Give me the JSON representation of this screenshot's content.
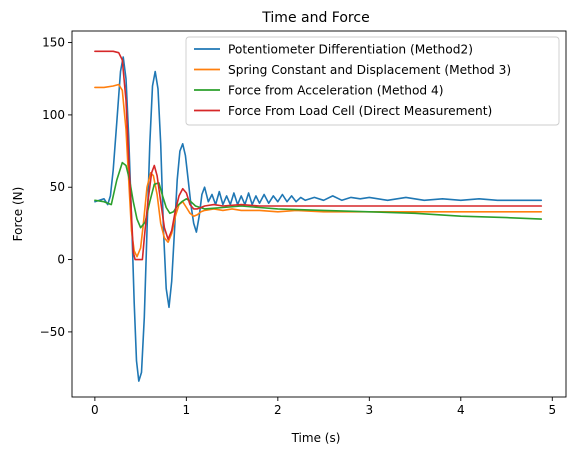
{
  "chart_data": {
    "type": "line",
    "title": "Time and Force",
    "xlabel": "Time (s)",
    "ylabel": "Force (N)",
    "xlim": [
      -0.25,
      5.15
    ],
    "ylim": [
      -95,
      158
    ],
    "xticks": [
      0,
      1,
      2,
      3,
      4,
      5
    ],
    "yticks": [
      -50,
      0,
      50,
      100,
      150
    ],
    "grid": false,
    "legend_position": "top-right",
    "series": [
      {
        "name": "Potentiometer Differentiation (Method2)",
        "color": "#1f77b4",
        "x": [
          0,
          0.1,
          0.14,
          0.17,
          0.2,
          0.24,
          0.28,
          0.31,
          0.34,
          0.37,
          0.4,
          0.43,
          0.455,
          0.48,
          0.51,
          0.54,
          0.57,
          0.6,
          0.63,
          0.66,
          0.69,
          0.72,
          0.75,
          0.78,
          0.81,
          0.84,
          0.87,
          0.9,
          0.93,
          0.96,
          0.99,
          1.02,
          1.05,
          1.08,
          1.11,
          1.14,
          1.17,
          1.2,
          1.24,
          1.28,
          1.32,
          1.36,
          1.4,
          1.44,
          1.48,
          1.52,
          1.56,
          1.6,
          1.64,
          1.68,
          1.72,
          1.76,
          1.8,
          1.85,
          1.9,
          1.95,
          2.0,
          2.05,
          2.1,
          2.15,
          2.2,
          2.25,
          2.3,
          2.4,
          2.5,
          2.6,
          2.7,
          2.8,
          2.9,
          3.0,
          3.2,
          3.4,
          3.6,
          3.8,
          4.0,
          4.2,
          4.4,
          4.6,
          4.88
        ],
        "y": [
          40,
          42,
          38,
          44,
          62,
          95,
          130,
          140,
          125,
          85,
          30,
          -30,
          -70,
          -84,
          -78,
          -40,
          20,
          80,
          120,
          130,
          118,
          80,
          20,
          -20,
          -33,
          -15,
          20,
          55,
          75,
          80,
          72,
          55,
          38,
          25,
          19,
          30,
          45,
          50,
          40,
          45,
          38,
          47,
          38,
          44,
          38,
          46,
          38,
          44,
          38,
          46,
          38,
          44,
          39,
          45,
          39,
          44,
          40,
          45,
          40,
          44,
          40,
          43,
          41,
          43,
          41,
          44,
          41,
          43,
          42,
          43,
          41,
          43,
          41,
          42,
          41,
          42,
          41,
          41,
          41
        ]
      },
      {
        "name": "Spring Constant and Displacement (Method 3)",
        "color": "#ff7f0e",
        "x": [
          0,
          0.1,
          0.2,
          0.26,
          0.3,
          0.34,
          0.37,
          0.4,
          0.43,
          0.46,
          0.5,
          0.53,
          0.57,
          0.61,
          0.64,
          0.68,
          0.72,
          0.76,
          0.8,
          0.84,
          0.88,
          0.92,
          0.96,
          1.0,
          1.04,
          1.08,
          1.12,
          1.16,
          1.2,
          1.3,
          1.4,
          1.5,
          1.6,
          1.8,
          2.0,
          2.2,
          2.5,
          3.0,
          3.5,
          4.0,
          4.5,
          4.88
        ],
        "y": [
          119,
          119,
          120,
          121,
          117,
          90,
          55,
          20,
          6,
          2,
          8,
          25,
          50,
          60,
          58,
          45,
          25,
          15,
          12,
          18,
          30,
          38,
          40,
          36,
          32,
          30,
          31,
          33,
          34,
          35,
          34,
          35,
          34,
          34,
          33,
          34,
          33,
          33,
          33,
          33,
          33,
          33
        ]
      },
      {
        "name": "Force from Acceleration (Method 4)",
        "color": "#2ca02c",
        "x": [
          0,
          0.1,
          0.18,
          0.24,
          0.3,
          0.34,
          0.38,
          0.42,
          0.46,
          0.5,
          0.55,
          0.6,
          0.65,
          0.7,
          0.74,
          0.78,
          0.82,
          0.86,
          0.9,
          0.95,
          1.0,
          1.05,
          1.1,
          1.2,
          1.4,
          1.6,
          1.8,
          2.0,
          2.5,
          3.0,
          3.5,
          4.0,
          4.5,
          4.88
        ],
        "y": [
          41,
          40,
          38,
          55,
          67,
          65,
          55,
          40,
          28,
          22,
          26,
          40,
          52,
          53,
          44,
          36,
          32,
          33,
          37,
          40,
          42,
          40,
          37,
          35,
          36,
          37,
          36,
          35,
          34,
          33,
          32,
          30,
          29,
          28
        ]
      },
      {
        "name": "Force From Load Cell (Direct Measurement)",
        "color": "#d62728",
        "x": [
          0,
          0.1,
          0.2,
          0.26,
          0.3,
          0.34,
          0.37,
          0.4,
          0.42,
          0.44,
          0.52,
          0.54,
          0.58,
          0.62,
          0.65,
          0.68,
          0.72,
          0.76,
          0.8,
          0.84,
          0.88,
          0.92,
          0.96,
          1.0,
          1.04,
          1.08,
          1.12,
          1.16,
          1.2,
          1.3,
          1.4,
          1.6,
          1.8,
          2.0,
          2.5,
          3.0,
          3.5,
          4.0,
          4.5,
          4.88
        ],
        "y": [
          144,
          144,
          144,
          143,
          138,
          110,
          70,
          30,
          5,
          0,
          0,
          15,
          40,
          60,
          65,
          58,
          40,
          22,
          14,
          20,
          34,
          44,
          49,
          46,
          38,
          35,
          35,
          36,
          37,
          38,
          37,
          38,
          37,
          37,
          37,
          37,
          37,
          37,
          37,
          37
        ]
      }
    ]
  }
}
